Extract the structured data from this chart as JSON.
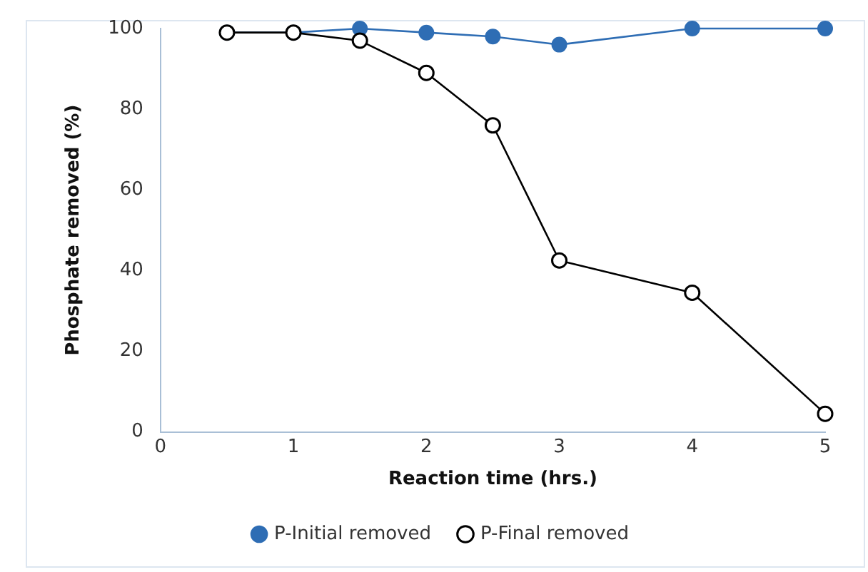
{
  "chart_data": {
    "type": "line",
    "xlabel": "Reaction time (hrs.)",
    "ylabel": "Phosphate removed (%)",
    "x": [
      0.5,
      1,
      1.5,
      2,
      2.5,
      3,
      4,
      5
    ],
    "series": [
      {
        "name": "P-Initial removed",
        "color": "#2e6db4",
        "marker": "circle",
        "values": [
          99,
          99,
          100,
          99,
          98,
          96,
          100,
          100
        ]
      },
      {
        "name": "P-Final removed",
        "color": "#000000",
        "marker": "circle_open",
        "values": [
          99,
          99,
          97,
          89,
          76,
          42.5,
          34.5,
          4.5
        ]
      }
    ],
    "xlim": [
      0,
      5
    ],
    "xticks": [
      0,
      1,
      2,
      3,
      4,
      5
    ],
    "ylim": [
      0,
      100
    ],
    "yticks": [
      0,
      20,
      40,
      60,
      80,
      100
    ],
    "grid": false,
    "legend": "bottom"
  }
}
